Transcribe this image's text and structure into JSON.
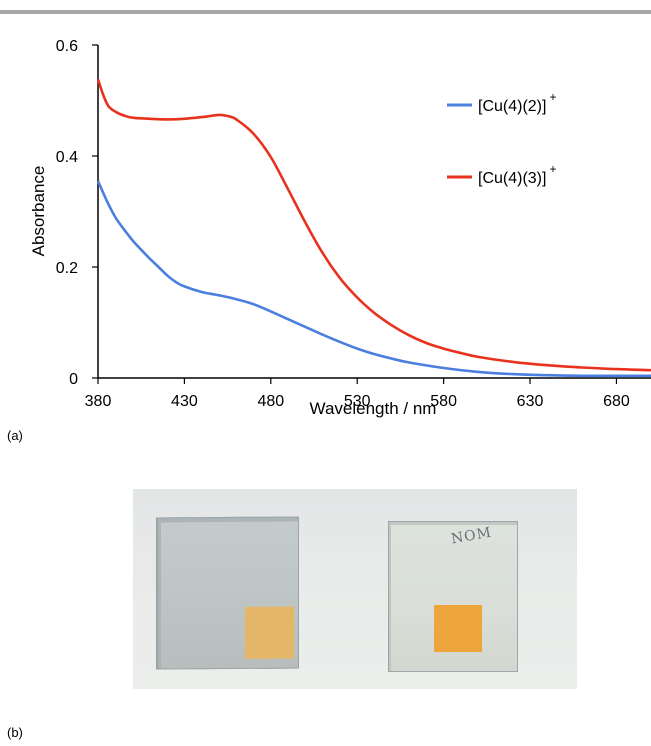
{
  "panels": {
    "a_label": "(a)",
    "b_label": "(b)"
  },
  "photo": {
    "handwriting": "NOM"
  },
  "colors": {
    "series_blue": "#4a7fe0",
    "series_red": "#e8321e",
    "axis": "#000000",
    "top_rule": "#a6a6a6"
  },
  "chart_data": {
    "type": "line",
    "title": "",
    "xlabel": "Wavelength / nm",
    "ylabel": "Absorbance",
    "xlim": [
      380,
      700
    ],
    "ylim": [
      0,
      0.6
    ],
    "xticks": [
      380,
      430,
      480,
      530,
      580,
      630,
      680
    ],
    "xtick_labels": [
      "380",
      "430",
      "480",
      "530",
      "580",
      "630",
      "680"
    ],
    "yticks": [
      0,
      0.2,
      0.4,
      0.6
    ],
    "ytick_labels": [
      "0",
      "0.2",
      "0.4",
      "0.6"
    ],
    "grid": false,
    "legend_position": "right",
    "series": [
      {
        "name": "[Cu(4)(2)]",
        "superscript": "+",
        "color": "#4a7fe0",
        "x": [
          380,
          385,
          390,
          395,
          400,
          405,
          410,
          415,
          420,
          425,
          430,
          440,
          450,
          460,
          470,
          480,
          490,
          500,
          510,
          520,
          530,
          540,
          550,
          560,
          580,
          600,
          620,
          640,
          660,
          680,
          700
        ],
        "y": [
          0.355,
          0.32,
          0.29,
          0.268,
          0.248,
          0.231,
          0.215,
          0.2,
          0.185,
          0.173,
          0.165,
          0.155,
          0.149,
          0.142,
          0.133,
          0.12,
          0.106,
          0.092,
          0.078,
          0.065,
          0.053,
          0.043,
          0.035,
          0.028,
          0.018,
          0.011,
          0.007,
          0.005,
          0.004,
          0.004,
          0.004
        ]
      },
      {
        "name": "[Cu(4)(3)]",
        "superscript": "+",
        "color": "#e8321e",
        "x": [
          380,
          383,
          386,
          390,
          395,
          400,
          410,
          420,
          430,
          440,
          445,
          450,
          455,
          460,
          470,
          480,
          490,
          500,
          510,
          520,
          530,
          540,
          550,
          560,
          570,
          580,
          590,
          600,
          620,
          640,
          660,
          680,
          700
        ],
        "y": [
          0.538,
          0.51,
          0.49,
          0.48,
          0.473,
          0.469,
          0.467,
          0.466,
          0.467,
          0.47,
          0.472,
          0.474,
          0.472,
          0.466,
          0.44,
          0.398,
          0.34,
          0.28,
          0.225,
          0.18,
          0.145,
          0.117,
          0.095,
          0.077,
          0.063,
          0.053,
          0.045,
          0.038,
          0.029,
          0.023,
          0.019,
          0.016,
          0.014
        ]
      }
    ]
  }
}
